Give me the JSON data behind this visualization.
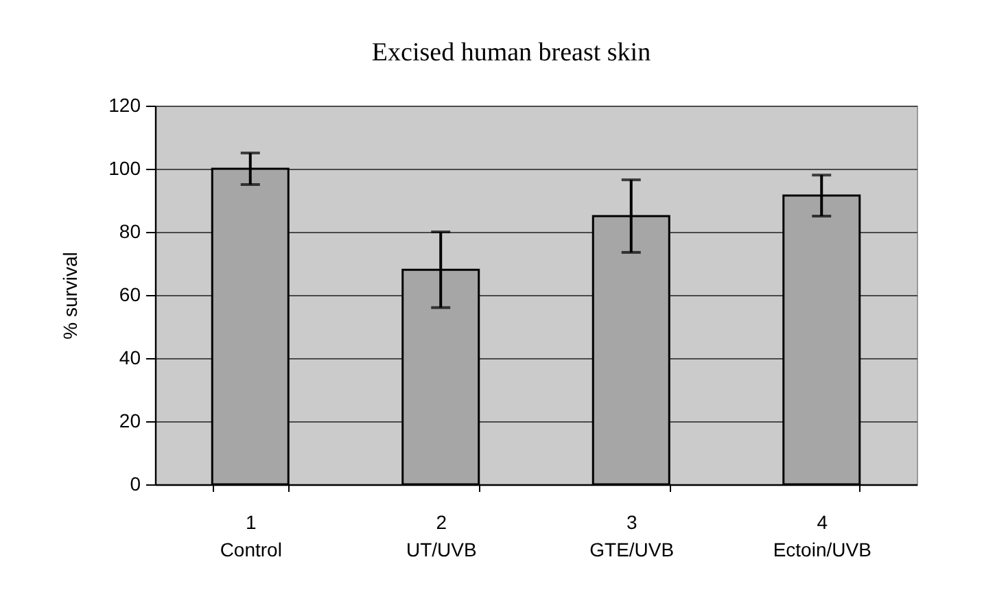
{
  "chart_data": {
    "type": "bar",
    "title": "Excised human breast skin",
    "ylabel": "% survival",
    "categories": [
      "1\nControl",
      "2\nUT/UVB",
      "3\nGTE/UVB",
      "4\nEctoin/UVB"
    ],
    "values": [
      100,
      68,
      85,
      91.5
    ],
    "errors": [
      5,
      12,
      11.5,
      6.5
    ],
    "color": "#a6a6a6",
    "ylim": [
      0,
      120
    ],
    "yticks": [
      0,
      20,
      40,
      60,
      80,
      100,
      120
    ],
    "grid": "y"
  }
}
